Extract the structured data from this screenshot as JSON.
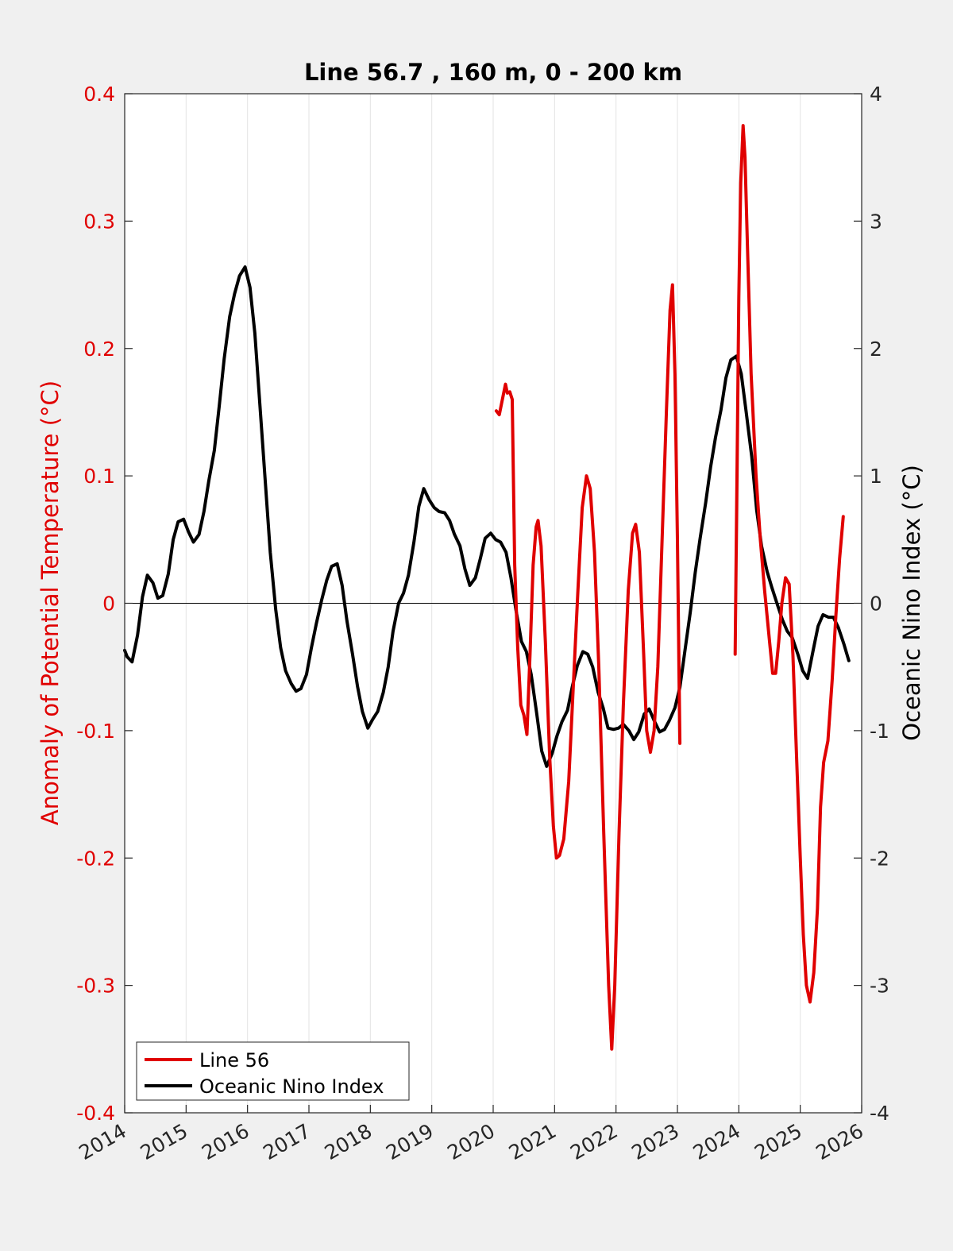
{
  "chart_data": {
    "type": "line",
    "title": "Line 56.7 , 160 m, 0 - 200 km",
    "xlabel": "",
    "ylabel_left": "Anomaly of Potential Temperature (°C)",
    "ylabel_right": "Oceanic Nino Index (°C)",
    "xlim": [
      2014,
      2026
    ],
    "ylim_left": [
      -0.4,
      0.4
    ],
    "ylim_right": [
      -4,
      4
    ],
    "x_ticks": [
      "2014",
      "2015",
      "2016",
      "2017",
      "2018",
      "2019",
      "2020",
      "2021",
      "2022",
      "2023",
      "2024",
      "2025",
      "2026"
    ],
    "y_ticks_left": [
      "0.4",
      "0.3",
      "0.2",
      "0.1",
      "0",
      "-0.1",
      "-0.2",
      "-0.3",
      "-0.4"
    ],
    "y_ticks_right": [
      "4",
      "3",
      "2",
      "1",
      "0",
      "-1",
      "-2",
      "-3",
      "-4"
    ],
    "grid": "vertical",
    "legend_location": "bottom-left",
    "colors": {
      "left_axis": "#e00000",
      "line56": "#e00000",
      "oni": "#000000"
    },
    "series": [
      {
        "name": "Line 56",
        "axis": "left",
        "segments": [
          [
            [
              2020.05,
              0.151
            ],
            [
              2020.1,
              0.148
            ],
            [
              2020.15,
              0.16
            ],
            [
              2020.2,
              0.172
            ],
            [
              2020.23,
              0.165
            ],
            [
              2020.27,
              0.166
            ],
            [
              2020.31,
              0.16
            ],
            [
              2020.35,
              0.03
            ],
            [
              2020.4,
              -0.035
            ],
            [
              2020.45,
              -0.08
            ],
            [
              2020.5,
              -0.088
            ],
            [
              2020.55,
              -0.103
            ],
            [
              2020.6,
              -0.04
            ],
            [
              2020.65,
              0.03
            ],
            [
              2020.7,
              0.06
            ],
            [
              2020.73,
              0.065
            ],
            [
              2020.78,
              0.045
            ],
            [
              2020.85,
              -0.03
            ],
            [
              2020.92,
              -0.12
            ],
            [
              2020.98,
              -0.175
            ],
            [
              2021.03,
              -0.2
            ],
            [
              2021.08,
              -0.198
            ],
            [
              2021.15,
              -0.185
            ],
            [
              2021.23,
              -0.14
            ],
            [
              2021.3,
              -0.07
            ],
            [
              2021.38,
              0.01
            ],
            [
              2021.45,
              0.075
            ],
            [
              2021.52,
              0.1
            ],
            [
              2021.58,
              0.09
            ],
            [
              2021.65,
              0.04
            ],
            [
              2021.72,
              -0.05
            ],
            [
              2021.8,
              -0.18
            ],
            [
              2021.88,
              -0.3
            ],
            [
              2021.93,
              -0.35
            ],
            [
              2021.98,
              -0.3
            ],
            [
              2022.05,
              -0.18
            ],
            [
              2022.12,
              -0.08
            ],
            [
              2022.2,
              0.01
            ],
            [
              2022.27,
              0.055
            ],
            [
              2022.32,
              0.062
            ],
            [
              2022.38,
              0.04
            ],
            [
              2022.45,
              -0.04
            ],
            [
              2022.5,
              -0.1
            ],
            [
              2022.56,
              -0.117
            ],
            [
              2022.62,
              -0.1
            ],
            [
              2022.68,
              -0.05
            ],
            [
              2022.75,
              0.05
            ],
            [
              2022.82,
              0.15
            ],
            [
              2022.88,
              0.23
            ],
            [
              2022.92,
              0.25
            ],
            [
              2022.96,
              0.18
            ],
            [
              2023.0,
              0.05
            ],
            [
              2023.04,
              -0.11
            ]
          ],
          [
            [
              2023.94,
              -0.04
            ],
            [
              2023.97,
              0.1
            ],
            [
              2024.0,
              0.24
            ],
            [
              2024.03,
              0.33
            ],
            [
              2024.07,
              0.375
            ],
            [
              2024.1,
              0.35
            ],
            [
              2024.14,
              0.28
            ],
            [
              2024.2,
              0.18
            ],
            [
              2024.28,
              0.1
            ],
            [
              2024.35,
              0.05
            ],
            [
              2024.42,
              0.01
            ],
            [
              2024.5,
              -0.03
            ],
            [
              2024.55,
              -0.055
            ],
            [
              2024.6,
              -0.055
            ],
            [
              2024.65,
              -0.03
            ],
            [
              2024.7,
              0.0
            ],
            [
              2024.76,
              0.02
            ],
            [
              2024.82,
              0.015
            ],
            [
              2024.88,
              -0.04
            ],
            [
              2024.94,
              -0.12
            ],
            [
              2025.0,
              -0.2
            ],
            [
              2025.05,
              -0.26
            ],
            [
              2025.1,
              -0.3
            ],
            [
              2025.16,
              -0.313
            ],
            [
              2025.22,
              -0.29
            ],
            [
              2025.28,
              -0.24
            ],
            [
              2025.33,
              -0.16
            ],
            [
              2025.38,
              -0.125
            ],
            [
              2025.45,
              -0.108
            ],
            [
              2025.52,
              -0.06
            ],
            [
              2025.58,
              -0.01
            ],
            [
              2025.64,
              0.035
            ],
            [
              2025.7,
              0.068
            ]
          ]
        ]
      },
      {
        "name": "Oceanic Nino Index",
        "axis": "right",
        "segments": [
          [
            [
              2014.0,
              -0.37
            ],
            [
              2014.04,
              -0.42
            ],
            [
              2014.12,
              -0.46
            ],
            [
              2014.21,
              -0.25
            ],
            [
              2014.29,
              0.05
            ],
            [
              2014.37,
              0.22
            ],
            [
              2014.46,
              0.16
            ],
            [
              2014.54,
              0.04
            ],
            [
              2014.62,
              0.06
            ],
            [
              2014.71,
              0.23
            ],
            [
              2014.79,
              0.5
            ],
            [
              2014.87,
              0.64
            ],
            [
              2014.96,
              0.66
            ],
            [
              2015.04,
              0.56
            ],
            [
              2015.12,
              0.48
            ],
            [
              2015.21,
              0.54
            ],
            [
              2015.29,
              0.72
            ],
            [
              2015.37,
              0.96
            ],
            [
              2015.46,
              1.2
            ],
            [
              2015.54,
              1.55
            ],
            [
              2015.62,
              1.92
            ],
            [
              2015.71,
              2.25
            ],
            [
              2015.79,
              2.43
            ],
            [
              2015.87,
              2.57
            ],
            [
              2015.96,
              2.64
            ],
            [
              2016.04,
              2.48
            ],
            [
              2016.12,
              2.12
            ],
            [
              2016.21,
              1.5
            ],
            [
              2016.29,
              0.95
            ],
            [
              2016.37,
              0.4
            ],
            [
              2016.46,
              -0.05
            ],
            [
              2016.54,
              -0.35
            ],
            [
              2016.62,
              -0.53
            ],
            [
              2016.71,
              -0.63
            ],
            [
              2016.79,
              -0.69
            ],
            [
              2016.87,
              -0.67
            ],
            [
              2016.96,
              -0.56
            ],
            [
              2017.04,
              -0.35
            ],
            [
              2017.12,
              -0.16
            ],
            [
              2017.21,
              0.03
            ],
            [
              2017.29,
              0.18
            ],
            [
              2017.37,
              0.29
            ],
            [
              2017.46,
              0.31
            ],
            [
              2017.54,
              0.14
            ],
            [
              2017.62,
              -0.14
            ],
            [
              2017.71,
              -0.4
            ],
            [
              2017.79,
              -0.65
            ],
            [
              2017.87,
              -0.85
            ],
            [
              2017.96,
              -0.98
            ],
            [
              2018.04,
              -0.91
            ],
            [
              2018.12,
              -0.85
            ],
            [
              2018.21,
              -0.7
            ],
            [
              2018.29,
              -0.5
            ],
            [
              2018.37,
              -0.22
            ],
            [
              2018.46,
              0.0
            ],
            [
              2018.54,
              0.08
            ],
            [
              2018.62,
              0.22
            ],
            [
              2018.71,
              0.48
            ],
            [
              2018.79,
              0.76
            ],
            [
              2018.87,
              0.9
            ],
            [
              2018.96,
              0.81
            ],
            [
              2019.04,
              0.75
            ],
            [
              2019.12,
              0.72
            ],
            [
              2019.21,
              0.71
            ],
            [
              2019.29,
              0.65
            ],
            [
              2019.37,
              0.54
            ],
            [
              2019.46,
              0.45
            ],
            [
              2019.54,
              0.27
            ],
            [
              2019.62,
              0.14
            ],
            [
              2019.71,
              0.2
            ],
            [
              2019.79,
              0.35
            ],
            [
              2019.87,
              0.51
            ],
            [
              2019.96,
              0.55
            ],
            [
              2020.04,
              0.5
            ],
            [
              2020.12,
              0.48
            ],
            [
              2020.21,
              0.4
            ],
            [
              2020.29,
              0.2
            ],
            [
              2020.37,
              -0.05
            ],
            [
              2020.46,
              -0.3
            ],
            [
              2020.54,
              -0.38
            ],
            [
              2020.62,
              -0.56
            ],
            [
              2020.71,
              -0.87
            ],
            [
              2020.79,
              -1.16
            ],
            [
              2020.87,
              -1.28
            ],
            [
              2020.96,
              -1.18
            ],
            [
              2021.04,
              -1.04
            ],
            [
              2021.12,
              -0.93
            ],
            [
              2021.21,
              -0.84
            ],
            [
              2021.29,
              -0.65
            ],
            [
              2021.37,
              -0.49
            ],
            [
              2021.46,
              -0.38
            ],
            [
              2021.54,
              -0.4
            ],
            [
              2021.62,
              -0.5
            ],
            [
              2021.71,
              -0.7
            ],
            [
              2021.79,
              -0.82
            ],
            [
              2021.87,
              -0.98
            ],
            [
              2021.96,
              -0.99
            ],
            [
              2022.04,
              -0.98
            ],
            [
              2022.12,
              -0.95
            ],
            [
              2022.21,
              -1.0
            ],
            [
              2022.29,
              -1.07
            ],
            [
              2022.37,
              -1.01
            ],
            [
              2022.46,
              -0.87
            ],
            [
              2022.54,
              -0.83
            ],
            [
              2022.62,
              -0.92
            ],
            [
              2022.71,
              -1.01
            ],
            [
              2022.79,
              -0.99
            ],
            [
              2022.87,
              -0.92
            ],
            [
              2022.96,
              -0.82
            ],
            [
              2023.04,
              -0.66
            ],
            [
              2023.12,
              -0.38
            ],
            [
              2023.21,
              -0.07
            ],
            [
              2023.29,
              0.24
            ],
            [
              2023.37,
              0.51
            ],
            [
              2023.46,
              0.79
            ],
            [
              2023.54,
              1.07
            ],
            [
              2023.62,
              1.3
            ],
            [
              2023.71,
              1.52
            ],
            [
              2023.79,
              1.77
            ],
            [
              2023.87,
              1.91
            ],
            [
              2023.96,
              1.94
            ],
            [
              2024.04,
              1.8
            ],
            [
              2024.12,
              1.5
            ],
            [
              2024.21,
              1.15
            ],
            [
              2024.29,
              0.73
            ],
            [
              2024.37,
              0.45
            ],
            [
              2024.46,
              0.25
            ],
            [
              2024.54,
              0.12
            ],
            [
              2024.62,
              0.0
            ],
            [
              2024.71,
              -0.13
            ],
            [
              2024.79,
              -0.22
            ],
            [
              2024.87,
              -0.27
            ],
            [
              2024.96,
              -0.4
            ],
            [
              2025.04,
              -0.53
            ],
            [
              2025.12,
              -0.59
            ],
            [
              2025.21,
              -0.37
            ],
            [
              2025.29,
              -0.18
            ],
            [
              2025.37,
              -0.09
            ],
            [
              2025.46,
              -0.11
            ],
            [
              2025.54,
              -0.11
            ],
            [
              2025.62,
              -0.19
            ],
            [
              2025.71,
              -0.32
            ],
            [
              2025.79,
              -0.45
            ]
          ]
        ]
      }
    ]
  }
}
